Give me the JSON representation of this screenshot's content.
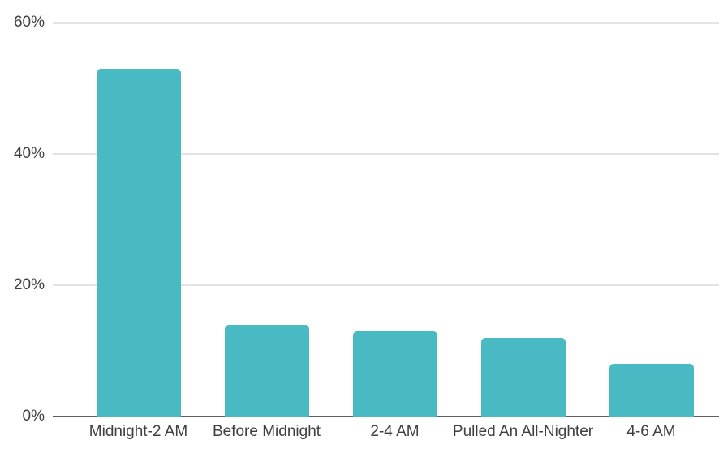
{
  "chart_data": {
    "type": "bar",
    "title": "",
    "subtitle": "",
    "xlabel": "",
    "ylabel": "",
    "categories": [
      "Midnight-2 AM",
      "Before Midnight",
      "2-4 AM",
      "Pulled An All-Nighter",
      "4-6 AM"
    ],
    "values": [
      53,
      14,
      13,
      12,
      8
    ],
    "value_unit": "%",
    "ylim": [
      0,
      63
    ],
    "yticks": [
      {
        "value": 0,
        "label": "0%"
      },
      {
        "value": 20,
        "label": "20%"
      },
      {
        "value": 40,
        "label": "40%"
      },
      {
        "value": 60,
        "label": "60%"
      }
    ],
    "grid": true,
    "legend": false,
    "legend_position": "none",
    "colors": {
      "bar": "#49bac4",
      "gridline": "#e3e3e3",
      "axis_line": "#5f5f5f",
      "text": "#3f3f3f",
      "background": "#ffffff"
    }
  }
}
